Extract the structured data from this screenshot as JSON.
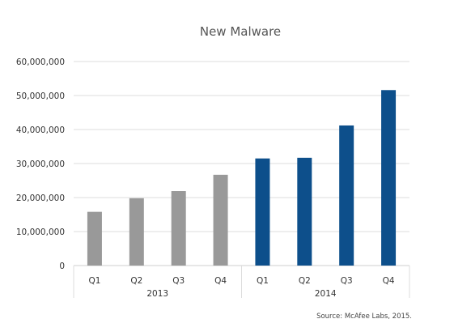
{
  "chart_data": {
    "type": "bar",
    "title": "New Malware",
    "source": "Source: McAfee Labs, 2015.",
    "categories": [
      "Q1",
      "Q2",
      "Q3",
      "Q4",
      "Q1",
      "Q2",
      "Q3",
      "Q4"
    ],
    "groups": [
      {
        "label": "2013",
        "categories": [
          "Q1",
          "Q2",
          "Q3",
          "Q4"
        ]
      },
      {
        "label": "2014",
        "categories": [
          "Q1",
          "Q2",
          "Q3",
          "Q4"
        ]
      }
    ],
    "values": [
      15800000,
      19800000,
      21900000,
      26700000,
      31500000,
      31700000,
      41200000,
      51600000
    ],
    "bar_colors": [
      "#999999",
      "#999999",
      "#999999",
      "#999999",
      "#0d4f8b",
      "#0d4f8b",
      "#0d4f8b",
      "#0d4f8b"
    ],
    "ylim": [
      0,
      60000000
    ],
    "yticks": [
      0,
      10000000,
      20000000,
      30000000,
      40000000,
      50000000,
      60000000
    ],
    "ytick_labels": [
      "0",
      "10,000,000",
      "20,000,000",
      "30,000,000",
      "40,000,000",
      "50,000,000",
      "60,000,000"
    ],
    "xlabel": "",
    "ylabel": "",
    "grid": true,
    "legend": "none"
  }
}
